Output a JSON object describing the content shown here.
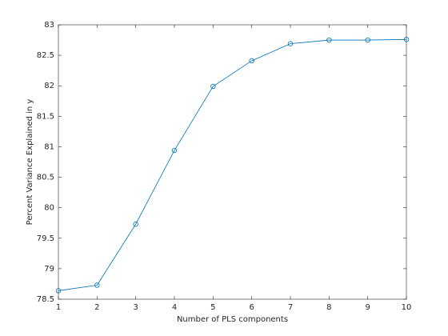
{
  "chart_data": {
    "type": "line",
    "xlabel": "Number of PLS components",
    "ylabel": "Percent Variance Explained in y",
    "x": [
      1,
      2,
      3,
      4,
      5,
      6,
      7,
      8,
      9,
      10
    ],
    "series": [
      {
        "color": "#0072bd",
        "marker": "circle",
        "values": [
          78.64,
          78.73,
          79.73,
          80.94,
          81.99,
          82.41,
          82.69,
          82.75,
          82.75,
          82.76
        ]
      }
    ],
    "xlim": [
      1,
      10
    ],
    "xticks": [
      1,
      2,
      3,
      4,
      5,
      6,
      7,
      8,
      9,
      10
    ],
    "ylim": [
      78.5,
      83
    ],
    "yticks": [
      78.5,
      79,
      79.5,
      80,
      80.5,
      81,
      81.5,
      82,
      82.5,
      83
    ],
    "grid": false
  }
}
